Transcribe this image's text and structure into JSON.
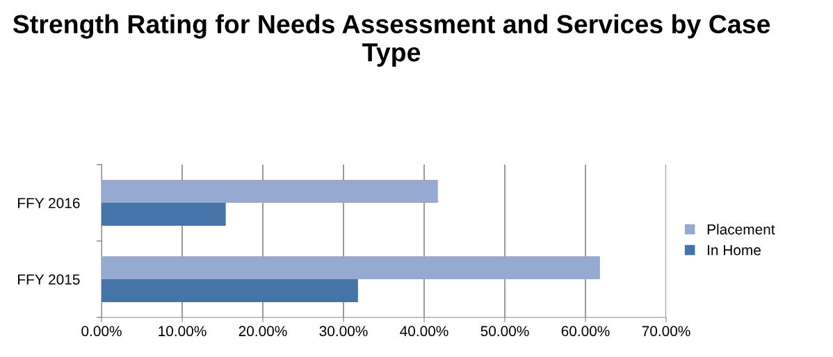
{
  "chart_data": {
    "type": "bar",
    "orientation": "horizontal",
    "title": "Strength Rating for Needs Assessment and Services by Case Type",
    "categories": [
      "FFY 2016",
      "FFY 2015"
    ],
    "series": [
      {
        "name": "Placement",
        "color": "#95a9d1",
        "values": [
          41.7,
          61.8
        ]
      },
      {
        "name": "In Home",
        "color": "#4674a8",
        "values": [
          15.4,
          31.8
        ]
      }
    ],
    "xlim": [
      0,
      70
    ],
    "xticks": [
      {
        "value": 0,
        "label": "0.00%"
      },
      {
        "value": 10,
        "label": "10.00%"
      },
      {
        "value": 20,
        "label": "20.00%"
      },
      {
        "value": 30,
        "label": "30.00%"
      },
      {
        "value": 40,
        "label": "40.00%"
      },
      {
        "value": 50,
        "label": "50.00%"
      },
      {
        "value": 60,
        "label": "60.00%"
      },
      {
        "value": 70,
        "label": "70.00%"
      }
    ],
    "grid": "x",
    "legend": "right"
  }
}
